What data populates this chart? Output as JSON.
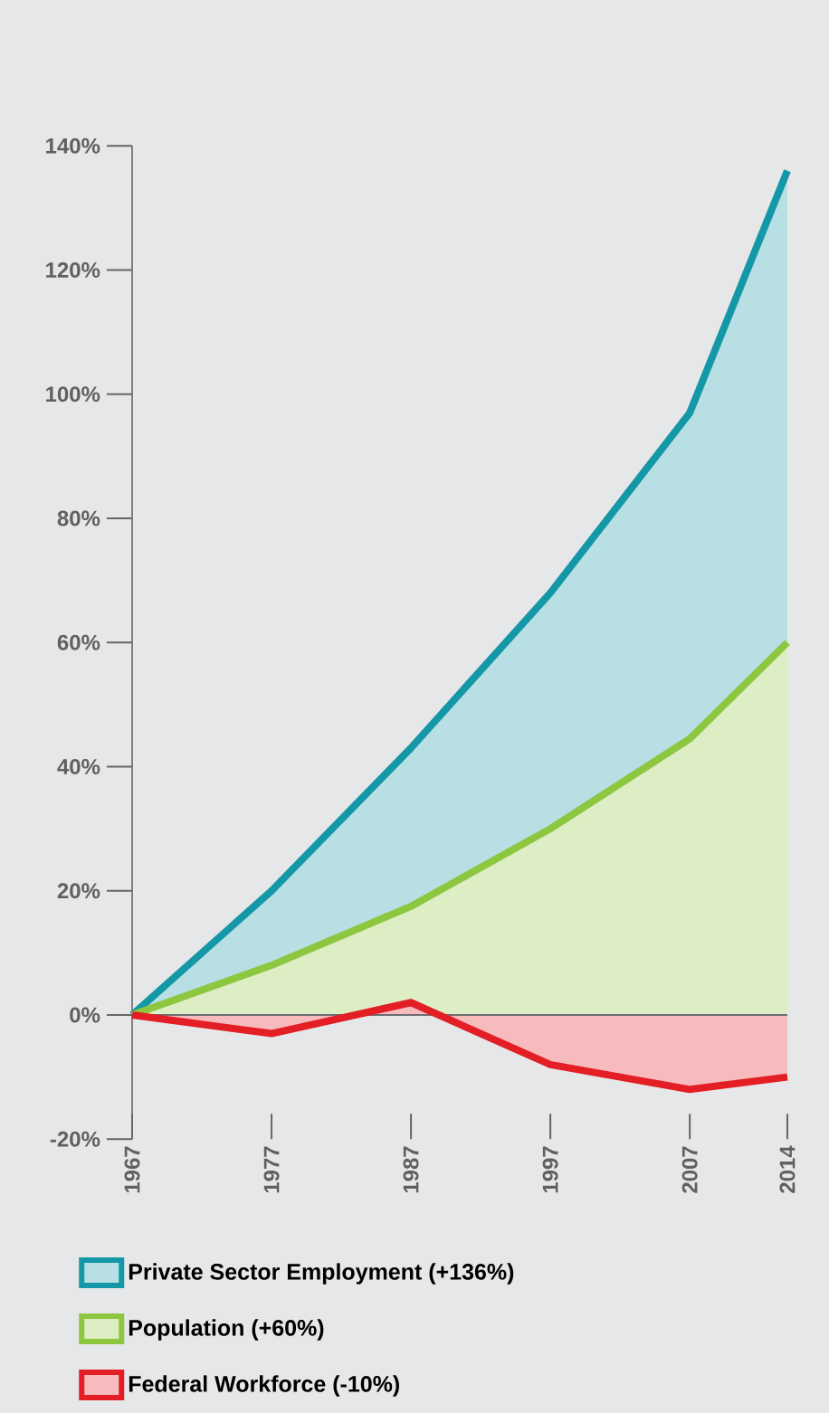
{
  "chart_data": {
    "type": "area",
    "x": [
      1967,
      1977,
      1987,
      1997,
      2007,
      2014
    ],
    "series": [
      {
        "name": "Private Sector Employment (+136%)",
        "color": "#1497a6",
        "values": [
          0,
          20,
          43,
          68,
          97,
          136
        ]
      },
      {
        "name": "Population  (+60%)",
        "color": "#8dc63f",
        "values": [
          0,
          8,
          17.5,
          30,
          44.5,
          60
        ]
      },
      {
        "name": "Federal Workforce (-10%)",
        "color": "#e31e24",
        "values": [
          0,
          -3,
          2,
          -8,
          -12,
          -10
        ]
      }
    ],
    "xlim": [
      1967,
      2014
    ],
    "xticks": [
      1967,
      1977,
      1987,
      1997,
      2007,
      2014
    ],
    "ylim": [
      -20,
      140
    ],
    "yticks": [
      {
        "value": -20,
        "label": "-20%"
      },
      {
        "value": 0,
        "label": "0%"
      },
      {
        "value": 20,
        "label": "20%"
      },
      {
        "value": 40,
        "label": "40%"
      },
      {
        "value": 60,
        "label": "60%"
      },
      {
        "value": 80,
        "label": "80%"
      },
      {
        "value": 100,
        "label": "100%"
      },
      {
        "value": 120,
        "label": "120%"
      },
      {
        "value": 140,
        "label": "140%"
      }
    ],
    "ref_lines": [
      {
        "axis": "y",
        "value": 0,
        "color": "#6d6e71"
      }
    ],
    "legend": "bottom",
    "grid": false
  }
}
